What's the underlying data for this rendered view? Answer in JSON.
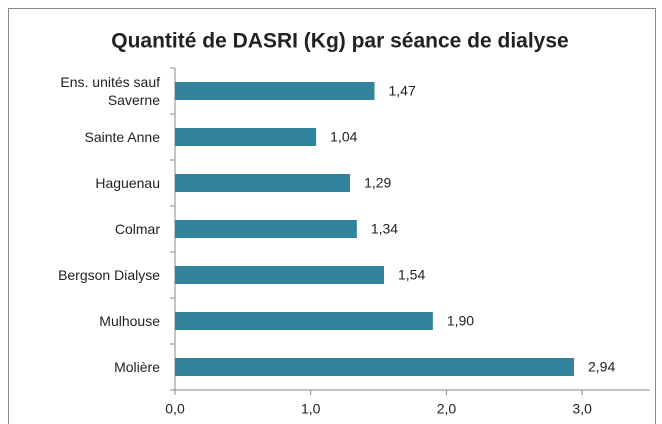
{
  "chart_data": {
    "type": "bar",
    "orientation": "horizontal",
    "title": "Quantité de DASRI (Kg) par séance de dialyse",
    "categories": [
      "Ens. unités sauf Saverne",
      "Sainte Anne",
      "Haguenau",
      "Colmar",
      "Bergson Dialyse",
      "Mulhouse",
      "Molière"
    ],
    "values": [
      1.47,
      1.04,
      1.29,
      1.34,
      1.54,
      1.9,
      2.94
    ],
    "value_labels": [
      "1,47",
      "1,04",
      "1,29",
      "1,34",
      "1,54",
      "1,90",
      "2,94"
    ],
    "color": "#31849b",
    "xlim": [
      0,
      3.5
    ],
    "xticks": [
      {
        "value": 0,
        "label": "0,0"
      },
      {
        "value": 1,
        "label": "1,0"
      },
      {
        "value": 2,
        "label": "2,0"
      },
      {
        "value": 3,
        "label": "3,0"
      }
    ],
    "grid": false
  }
}
